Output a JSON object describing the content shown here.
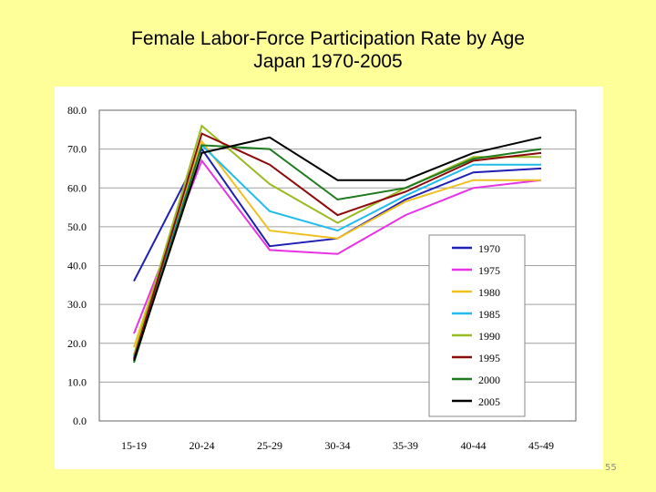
{
  "slide": {
    "title_line1": "Female Labor-Force Participation Rate by Age",
    "title_line2": "Japan 1970-2005",
    "page_number": "55",
    "background": "#ffff99"
  },
  "chart_data": {
    "type": "line",
    "title": "Female Labor-Force Participation Rate by Age Japan 1970-2005",
    "xlabel": "",
    "ylabel": "",
    "categories": [
      "15-19",
      "20-24",
      "25-29",
      "30-34",
      "35-39",
      "40-44",
      "45-49"
    ],
    "ylim": [
      0,
      80
    ],
    "yticks": [
      "0.0",
      "10.0",
      "20.0",
      "30.0",
      "40.0",
      "50.0",
      "60.0",
      "70.0",
      "80.0"
    ],
    "grid": true,
    "legend_position": "right",
    "series": [
      {
        "name": "1970",
        "color": "#1f1fb4",
        "values": [
          36,
          70,
          45,
          47,
          57,
          64,
          65
        ]
      },
      {
        "name": "1975",
        "color": "#e633e6",
        "values": [
          22.5,
          67,
          44,
          43,
          53,
          60,
          62
        ]
      },
      {
        "name": "1980",
        "color": "#f0c020",
        "values": [
          19,
          72,
          49,
          47,
          56.5,
          62,
          62
        ]
      },
      {
        "name": "1985",
        "color": "#22bbee",
        "values": [
          16.5,
          71,
          54,
          49,
          58,
          66,
          66
        ]
      },
      {
        "name": "1990",
        "color": "#99bb22",
        "values": [
          17,
          76,
          61,
          51,
          60,
          68,
          68
        ]
      },
      {
        "name": "1995",
        "color": "#8b0a0a",
        "values": [
          16,
          74,
          66,
          53,
          59,
          67,
          69
        ]
      },
      {
        "name": "2000",
        "color": "#1e7a1e",
        "values": [
          15,
          71,
          70,
          57,
          60,
          67.5,
          70
        ]
      },
      {
        "name": "2005",
        "color": "#000000",
        "values": [
          15.5,
          69,
          73,
          62,
          62,
          69,
          73
        ]
      }
    ]
  }
}
